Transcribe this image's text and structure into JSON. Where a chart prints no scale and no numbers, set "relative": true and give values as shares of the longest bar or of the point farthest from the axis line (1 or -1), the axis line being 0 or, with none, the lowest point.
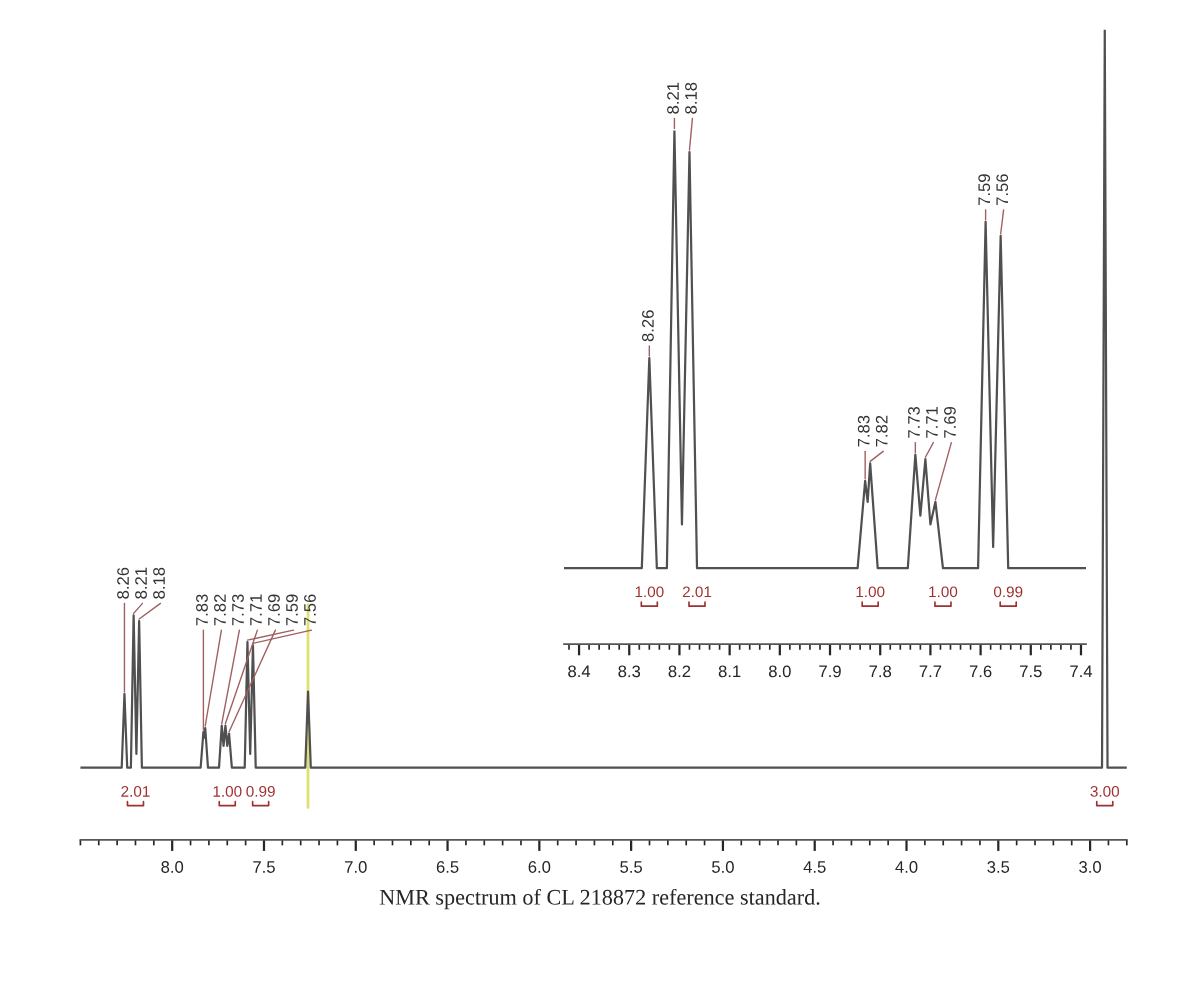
{
  "chart_data": [
    {
      "type": "line",
      "relative": true,
      "xlim": [
        8.5,
        2.8
      ],
      "xticks": [
        {
          "value": 8.0,
          "label": "8.0"
        },
        7.5,
        {
          "value": 7.0,
          "label": "7.0"
        },
        6.5,
        {
          "value": 6.0,
          "label": "6.0"
        },
        5.5,
        {
          "value": 5.0,
          "label": "5.0"
        },
        4.5,
        {
          "value": 4.0,
          "label": "4.0"
        },
        3.5,
        {
          "value": 3.0,
          "label": "3.0"
        }
      ],
      "tick_labels": "x",
      "grid": false,
      "legend": false,
      "series": [
        {
          "color": "#505050",
          "x": [
            8.5,
            8.275,
            8.26,
            8.245,
            8.225,
            8.21,
            8.195,
            8.18,
            8.165,
            7.845,
            7.83,
            7.825,
            7.82,
            7.805,
            7.745,
            7.73,
            7.72,
            7.71,
            7.7,
            7.69,
            7.675,
            7.605,
            7.59,
            7.575,
            7.56,
            7.545,
            7.275,
            7.26,
            7.245,
            2.935,
            2.92,
            2.905,
            2.8
          ],
          "values": [
            0.089,
            0.089,
            0.18,
            0.089,
            0.089,
            0.277,
            0.106,
            0.27,
            0.089,
            0.089,
            0.133,
            0.126,
            0.138,
            0.089,
            0.089,
            0.141,
            0.116,
            0.141,
            0.116,
            0.131,
            0.089,
            0.089,
            0.244,
            0.106,
            0.24,
            0.089,
            0.089,
            0.183,
            0.089,
            0.089,
            1,
            0.089,
            0.089
          ]
        }
      ],
      "ref_lines": [
        {
          "axis": "x",
          "value": 7.26,
          "color": "#e0e070"
        }
      ],
      "annotations": [
        {
          "text": "8.26",
          "x": 8.26,
          "y": 0.18
        },
        {
          "text": "8.21",
          "x": 8.21,
          "y": 0.277
        },
        {
          "text": "8.18",
          "x": 8.18,
          "y": 0.27
        },
        {
          "text": "7.83",
          "x": 7.83,
          "y": 0.133
        },
        {
          "text": "7.82",
          "x": 7.82,
          "y": 0.138
        },
        {
          "text": "7.73",
          "x": 7.73,
          "y": 0.141
        },
        {
          "text": "7.69",
          "x": 7.69,
          "y": 0.131
        },
        {
          "text": "7.71",
          "x": 7.71,
          "y": 0.141
        },
        {
          "text": "7.59",
          "x": 7.59,
          "y": 0.244
        },
        {
          "text": "7.56",
          "x": 7.56,
          "y": 0.24
        },
        {
          "text": "2.01",
          "x": 8.2,
          "y": 0.089
        },
        {
          "text": "1.00",
          "x": 7.7,
          "y": 0.089
        },
        {
          "text": "0.99",
          "x": 7.59,
          "y": 0.089
        },
        {
          "text": "3.00",
          "x": 2.92,
          "y": 0.089
        },
        "NMR spectrum of CL 218872 reference standard."
      ]
    },
    {
      "type": "line",
      "relative": true,
      "xlim": [
        8.43,
        7.39
      ],
      "xticks": [
        8.4,
        8.3,
        8.2,
        8.1,
        {
          "value": 8.0,
          "label": "8.0"
        },
        7.9,
        7.8,
        7.7,
        7.6,
        7.5,
        7.4
      ],
      "tick_labels": "x",
      "grid": false,
      "legend": false,
      "series": [
        {
          "color": "#505050",
          "x": [
            8.43,
            8.275,
            8.26,
            8.245,
            8.225,
            8.21,
            8.195,
            8.18,
            8.165,
            7.845,
            7.83,
            7.825,
            7.82,
            7.805,
            7.745,
            7.73,
            7.72,
            7.71,
            7.7,
            7.69,
            7.675,
            7.605,
            7.59,
            7.575,
            7.56,
            7.545,
            7.39
          ],
          "values": [
            0.148,
            0.148,
            0.557,
            0.148,
            0.148,
            1,
            0.233,
            0.958,
            0.148,
            0.148,
            0.318,
            0.277,
            0.352,
            0.148,
            0.148,
            0.369,
            0.25,
            0.36,
            0.233,
            0.277,
            0.148,
            0.148,
            0.822,
            0.189,
            0.795,
            0.148,
            0.148
          ]
        }
      ],
      "annotations": [
        {
          "text": "8.26",
          "x": 8.26,
          "y": 0.557
        },
        {
          "text": "8.21",
          "x": 8.21,
          "y": 1
        },
        {
          "text": "8.18",
          "x": 8.18,
          "y": 0.958
        },
        {
          "text": "7.83",
          "x": 7.83,
          "y": 0.318
        },
        {
          "text": "7.82",
          "x": 7.82,
          "y": 0.352
        },
        {
          "text": "7.73",
          "x": 7.73,
          "y": 0.369
        },
        {
          "text": "7.69",
          "x": 7.69,
          "y": 0.277
        },
        {
          "text": "7.71",
          "x": 7.71,
          "y": 0.36
        },
        {
          "text": "7.59",
          "x": 7.59,
          "y": 0.822
        },
        {
          "text": "7.56",
          "x": 7.56,
          "y": 0.795
        },
        {
          "text": "1.00",
          "x": 8.26,
          "y": 0.148
        },
        {
          "text": "2.01",
          "x": 8.165,
          "y": 0.148
        },
        {
          "text": "1.00",
          "x": 7.82,
          "y": 0.148
        },
        {
          "text": "1.00",
          "x": 7.675,
          "y": 0.148
        },
        {
          "text": "0.99",
          "x": 7.545,
          "y": 0.148
        }
      ]
    }
  ]
}
